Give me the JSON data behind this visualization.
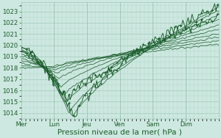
{
  "background_color": "#cde8e0",
  "grid_color": "#a0c8b8",
  "line_color": "#1a5c2a",
  "xlabel": "Pression niveau de la mer( hPa )",
  "xlabel_fontsize": 8,
  "tick_fontsize": 6.5,
  "ylim": [
    1013.5,
    1023.8
  ],
  "yticks": [
    1014,
    1015,
    1016,
    1017,
    1018,
    1019,
    1020,
    1021,
    1022,
    1023
  ],
  "day_labels": [
    "Mer",
    "Lun",
    "Jeu",
    "Ven",
    "Sam",
    "Dim"
  ],
  "day_positions": [
    0,
    48,
    96,
    144,
    192,
    240
  ],
  "total_hours": 288,
  "figsize": [
    3.2,
    2.0
  ],
  "dpi": 100
}
